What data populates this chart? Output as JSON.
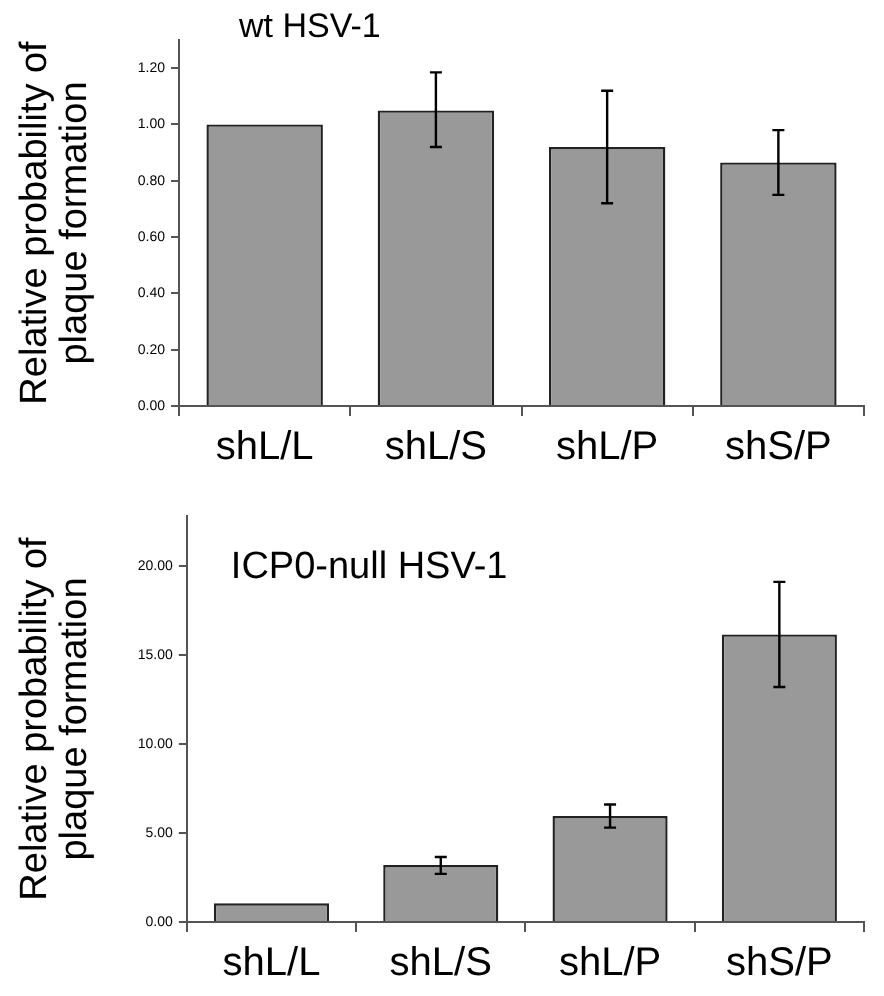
{
  "chart_data": [
    {
      "type": "bar",
      "title": "wt HSV-1",
      "ylabel": "Relative probability of\nplaque formation",
      "categories": [
        "shL/L",
        "shL/S",
        "shL/P",
        "shS/P"
      ],
      "values": [
        1.0,
        1.05,
        0.92,
        0.865
      ],
      "errors": [
        null,
        [
          0.92,
          1.185
        ],
        [
          0.72,
          1.12
        ],
        [
          0.75,
          0.98
        ]
      ],
      "color": "#999999",
      "ylim": [
        0,
        1.3
      ],
      "yticks": [
        {
          "value": 0,
          "label": "0.00"
        },
        {
          "value": 0.2,
          "label": "0.20"
        },
        {
          "value": 0.4,
          "label": "0.40"
        },
        {
          "value": 0.6,
          "label": "0.60"
        },
        {
          "value": 0.8,
          "label": "0.80"
        },
        {
          "value": 1.0,
          "label": "1.00"
        },
        {
          "value": 1.2,
          "label": "1.20"
        }
      ],
      "grid": false,
      "legend": false
    },
    {
      "type": "bar",
      "title": "ICP0-null HSV-1",
      "ylabel": "Relative probability of\nplaque formation",
      "categories": [
        "shL/L",
        "shL/S",
        "shL/P",
        "shS/P"
      ],
      "values": [
        1.05,
        3.2,
        5.95,
        16.15
      ],
      "errors": [
        null,
        [
          2.7,
          3.65
        ],
        [
          5.3,
          6.6
        ],
        [
          13.2,
          19.1
        ]
      ],
      "color": "#999999",
      "ylim": [
        0,
        22.8
      ],
      "yticks": [
        {
          "value": 0,
          "label": "0.00"
        },
        {
          "value": 5,
          "label": "5.00"
        },
        {
          "value": 10,
          "label": "10.00"
        },
        {
          "value": 15,
          "label": "15.00"
        },
        {
          "value": 20,
          "label": "20.00"
        }
      ],
      "grid": false,
      "legend": false
    }
  ]
}
